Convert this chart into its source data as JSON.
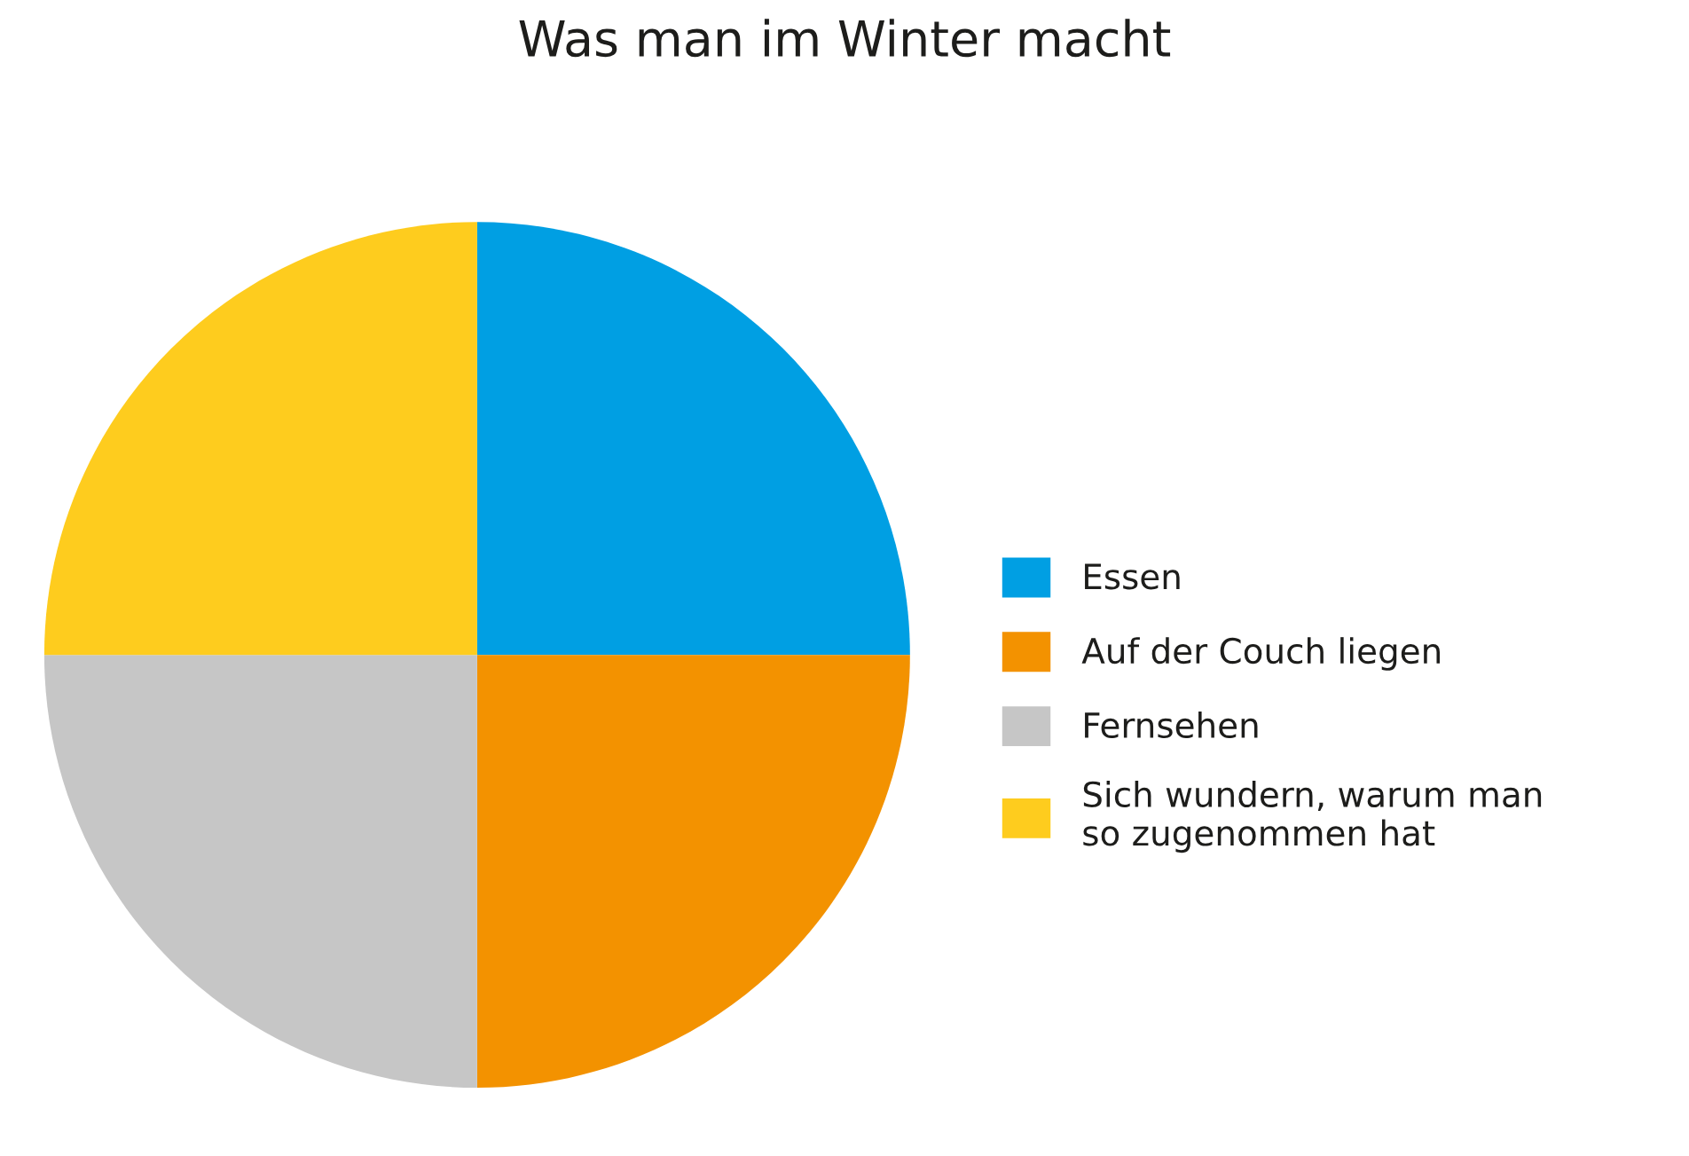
{
  "chart_data": {
    "type": "pie",
    "title": "Was man im Winter macht",
    "categories": [
      "Essen",
      "Auf der Couch liegen",
      "Fernsehen",
      "Sich wundern, warum man\nso zugenommen hat"
    ],
    "values": [
      25,
      25,
      25,
      25
    ],
    "colors": [
      "#009fe3",
      "#f39200",
      "#c6c6c6",
      "#fecc1e"
    ],
    "legend": "right"
  }
}
